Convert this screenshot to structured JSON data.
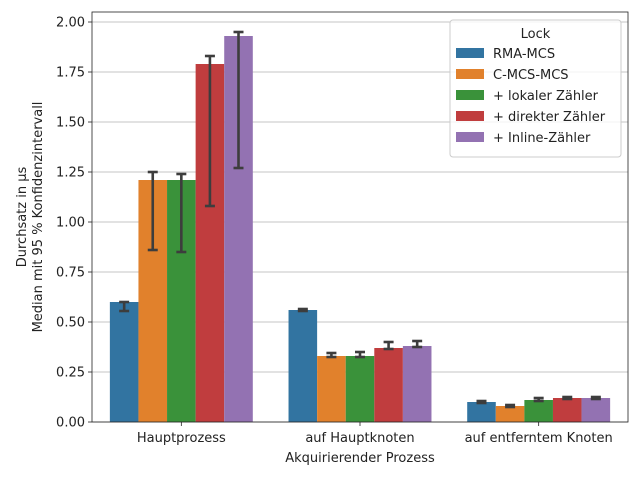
{
  "chart_data": {
    "type": "bar",
    "xlabel": "Akquirierender Prozess",
    "ylabel_line1": "Durchsatz in µs",
    "ylabel_line2": "Median mit 95 % Konfidenzintervall",
    "ylim": [
      0,
      2.05
    ],
    "yticks": [
      "0.00",
      "0.25",
      "0.50",
      "0.75",
      "1.00",
      "1.25",
      "1.50",
      "1.75",
      "2.00"
    ],
    "grid": "horizontal",
    "legend_title": "Lock",
    "legend_position": "top-right",
    "categories": [
      "Hauptprozess",
      "auf Hauptknoten",
      "auf entferntem Knoten"
    ],
    "series": [
      {
        "name": "RMA-MCS",
        "color": "#3274a1",
        "values": [
          0.6,
          0.56,
          0.1
        ],
        "ci_low": [
          0.555,
          0.555,
          0.095
        ],
        "ci_high": [
          0.6,
          0.565,
          0.105
        ]
      },
      {
        "name": "C-MCS-MCS",
        "color": "#e1812c",
        "values": [
          1.21,
          0.33,
          0.08
        ],
        "ci_low": [
          0.86,
          0.325,
          0.075
        ],
        "ci_high": [
          1.25,
          0.345,
          0.085
        ]
      },
      {
        "name": "+ lokaler Zähler",
        "color": "#3a923a",
        "values": [
          1.21,
          0.33,
          0.11
        ],
        "ci_low": [
          0.85,
          0.325,
          0.105
        ],
        "ci_high": [
          1.24,
          0.35,
          0.12
        ]
      },
      {
        "name": "+ direkter Zähler",
        "color": "#c03d3e",
        "values": [
          1.79,
          0.37,
          0.12
        ],
        "ci_low": [
          1.08,
          0.365,
          0.115
        ],
        "ci_high": [
          1.83,
          0.4,
          0.125
        ]
      },
      {
        "name": "+ Inline-Zähler",
        "color": "#9372b2",
        "values": [
          1.93,
          0.38,
          0.12
        ],
        "ci_low": [
          1.27,
          0.375,
          0.115
        ],
        "ci_high": [
          1.95,
          0.405,
          0.125
        ]
      }
    ]
  }
}
